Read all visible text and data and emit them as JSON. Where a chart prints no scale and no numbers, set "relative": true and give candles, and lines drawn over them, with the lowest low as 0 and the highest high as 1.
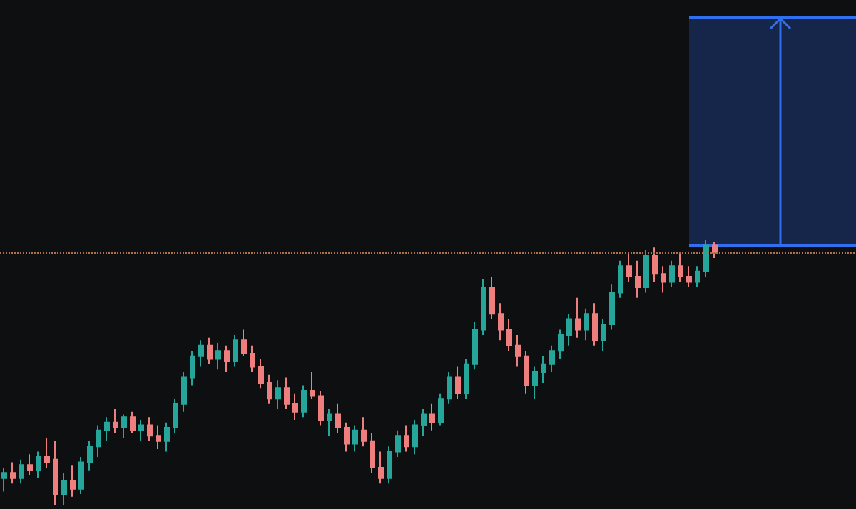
{
  "chart_data": {
    "type": "candlestick",
    "relative": true,
    "categories": [
      null,
      null,
      null,
      null,
      null,
      null,
      null,
      null,
      null,
      null,
      null,
      null,
      null,
      null,
      null,
      null,
      null,
      null,
      null,
      null,
      null,
      null,
      null,
      null,
      null,
      null,
      null,
      null,
      null,
      null,
      null,
      null,
      null,
      null,
      null,
      null,
      null,
      null,
      null,
      null,
      null,
      null,
      null,
      null,
      null,
      null,
      null,
      null,
      null,
      null,
      null,
      null,
      null,
      null,
      null,
      null,
      null,
      null,
      null,
      null,
      null,
      null,
      null,
      null,
      null,
      null,
      null,
      null,
      null,
      null,
      null,
      null,
      null,
      null,
      null,
      null,
      null,
      null,
      null,
      null,
      null,
      null,
      null,
      null
    ],
    "ohlc": [
      [
        0.1,
        0.14,
        0.05,
        0.12
      ],
      [
        0.12,
        0.16,
        0.08,
        0.1
      ],
      [
        0.1,
        0.17,
        0.08,
        0.15
      ],
      [
        0.15,
        0.19,
        0.11,
        0.13
      ],
      [
        0.13,
        0.2,
        0.1,
        0.18
      ],
      [
        0.18,
        0.25,
        0.14,
        0.16
      ],
      [
        0.17,
        0.24,
        0.0,
        0.04
      ],
      [
        0.04,
        0.12,
        0.0,
        0.09
      ],
      [
        0.09,
        0.15,
        0.03,
        0.06
      ],
      [
        0.06,
        0.18,
        0.04,
        0.16
      ],
      [
        0.16,
        0.24,
        0.13,
        0.22
      ],
      [
        0.22,
        0.3,
        0.18,
        0.28
      ],
      [
        0.28,
        0.33,
        0.24,
        0.31
      ],
      [
        0.31,
        0.36,
        0.27,
        0.29
      ],
      [
        0.29,
        0.34,
        0.25,
        0.33
      ],
      [
        0.33,
        0.35,
        0.27,
        0.28
      ],
      [
        0.28,
        0.32,
        0.24,
        0.3
      ],
      [
        0.3,
        0.33,
        0.24,
        0.26
      ],
      [
        0.26,
        0.3,
        0.21,
        0.24
      ],
      [
        0.24,
        0.31,
        0.2,
        0.29
      ],
      [
        0.29,
        0.4,
        0.27,
        0.38
      ],
      [
        0.38,
        0.5,
        0.35,
        0.48
      ],
      [
        0.48,
        0.58,
        0.45,
        0.56
      ],
      [
        0.56,
        0.62,
        0.52,
        0.6
      ],
      [
        0.6,
        0.63,
        0.53,
        0.55
      ],
      [
        0.55,
        0.61,
        0.51,
        0.58
      ],
      [
        0.58,
        0.6,
        0.5,
        0.54
      ],
      [
        0.54,
        0.64,
        0.52,
        0.62
      ],
      [
        0.62,
        0.66,
        0.56,
        0.57
      ],
      [
        0.57,
        0.6,
        0.5,
        0.52
      ],
      [
        0.52,
        0.55,
        0.44,
        0.46
      ],
      [
        0.46,
        0.49,
        0.38,
        0.4
      ],
      [
        0.4,
        0.47,
        0.36,
        0.44
      ],
      [
        0.44,
        0.48,
        0.36,
        0.38
      ],
      [
        0.38,
        0.42,
        0.32,
        0.35
      ],
      [
        0.35,
        0.45,
        0.33,
        0.43
      ],
      [
        0.43,
        0.5,
        0.4,
        0.41
      ],
      [
        0.41,
        0.43,
        0.3,
        0.32
      ],
      [
        0.32,
        0.36,
        0.26,
        0.34
      ],
      [
        0.34,
        0.38,
        0.27,
        0.29
      ],
      [
        0.29,
        0.31,
        0.2,
        0.23
      ],
      [
        0.23,
        0.3,
        0.2,
        0.28
      ],
      [
        0.28,
        0.33,
        0.22,
        0.24
      ],
      [
        0.24,
        0.27,
        0.12,
        0.14
      ],
      [
        0.14,
        0.2,
        0.08,
        0.1
      ],
      [
        0.1,
        0.22,
        0.08,
        0.2
      ],
      [
        0.2,
        0.28,
        0.18,
        0.26
      ],
      [
        0.26,
        0.3,
        0.2,
        0.22
      ],
      [
        0.22,
        0.32,
        0.19,
        0.3
      ],
      [
        0.3,
        0.36,
        0.26,
        0.34
      ],
      [
        0.34,
        0.38,
        0.28,
        0.31
      ],
      [
        0.31,
        0.42,
        0.3,
        0.4
      ],
      [
        0.4,
        0.5,
        0.38,
        0.48
      ],
      [
        0.48,
        0.52,
        0.4,
        0.42
      ],
      [
        0.42,
        0.55,
        0.4,
        0.53
      ],
      [
        0.53,
        0.69,
        0.51,
        0.66
      ],
      [
        0.66,
        0.85,
        0.64,
        0.82
      ],
      [
        0.82,
        0.86,
        0.7,
        0.72
      ],
      [
        0.72,
        0.76,
        0.62,
        0.66
      ],
      [
        0.66,
        0.7,
        0.58,
        0.6
      ],
      [
        0.6,
        0.64,
        0.52,
        0.56
      ],
      [
        0.56,
        0.58,
        0.42,
        0.45
      ],
      [
        0.45,
        0.52,
        0.4,
        0.5
      ],
      [
        0.5,
        0.56,
        0.46,
        0.53
      ],
      [
        0.53,
        0.6,
        0.5,
        0.58
      ],
      [
        0.58,
        0.66,
        0.55,
        0.64
      ],
      [
        0.64,
        0.72,
        0.6,
        0.7
      ],
      [
        0.7,
        0.78,
        0.63,
        0.66
      ],
      [
        0.66,
        0.74,
        0.62,
        0.72
      ],
      [
        0.72,
        0.76,
        0.6,
        0.62
      ],
      [
        0.62,
        0.7,
        0.58,
        0.68
      ],
      [
        0.68,
        0.83,
        0.66,
        0.8
      ],
      [
        0.8,
        0.92,
        0.78,
        0.9
      ],
      [
        0.9,
        0.95,
        0.84,
        0.86
      ],
      [
        0.86,
        0.92,
        0.78,
        0.82
      ],
      [
        0.82,
        0.96,
        0.8,
        0.94
      ],
      [
        0.94,
        0.97,
        0.84,
        0.87
      ],
      [
        0.87,
        0.9,
        0.8,
        0.84
      ],
      [
        0.84,
        0.92,
        0.82,
        0.9
      ],
      [
        0.9,
        0.95,
        0.84,
        0.86
      ],
      [
        0.86,
        0.9,
        0.82,
        0.84
      ],
      [
        0.84,
        0.9,
        0.82,
        0.88
      ],
      [
        0.88,
        1.0,
        0.86,
        0.98
      ],
      [
        0.98,
        0.99,
        0.93,
        0.95
      ]
    ],
    "ref_lines": [
      {
        "axis": "y",
        "value": 0.95,
        "color": "#b0704e",
        "line_style": "dotted"
      }
    ]
  }
}
